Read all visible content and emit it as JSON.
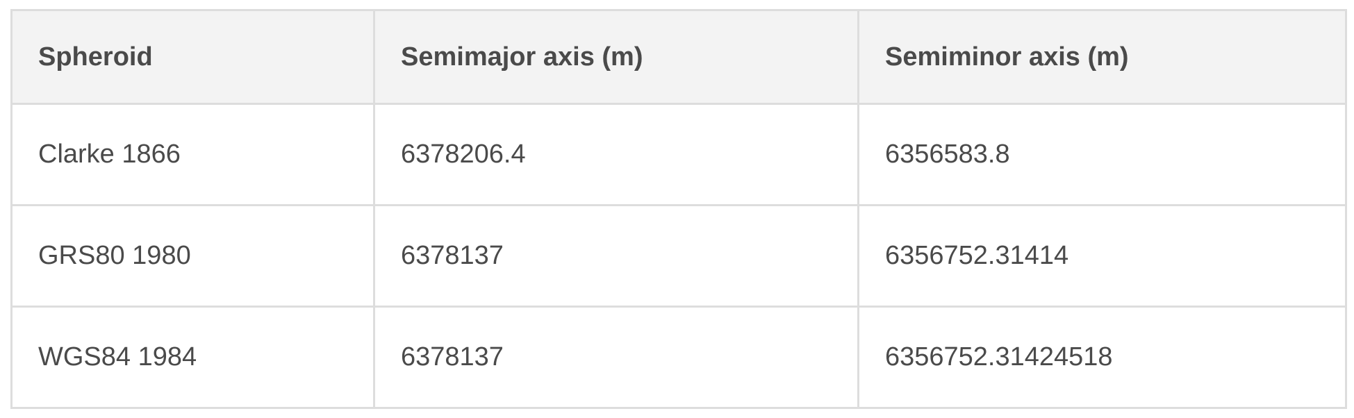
{
  "table": {
    "headers": [
      "Spheroid",
      "Semimajor axis (m)",
      "Semiminor axis (m)"
    ],
    "rows": [
      [
        "Clarke 1866",
        "6378206.4",
        "6356583.8"
      ],
      [
        "GRS80 1980",
        "6378137",
        "6356752.31414"
      ],
      [
        "WGS84 1984",
        "6378137",
        "6356752.31424518"
      ]
    ]
  }
}
